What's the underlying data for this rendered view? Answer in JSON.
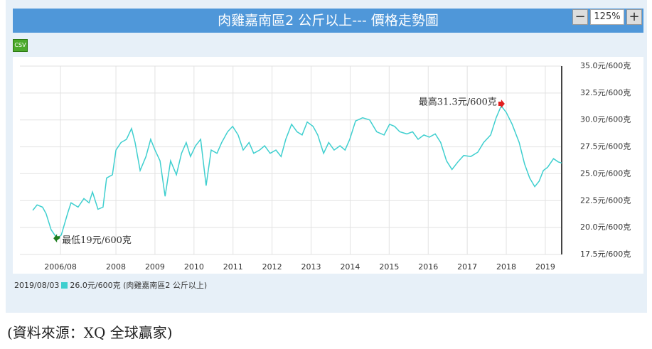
{
  "chart_data": {
    "type": "line",
    "title": "肉雞嘉南區2 公斤以上--- 價格走勢圖",
    "zoom": "125%",
    "csv": "CSV",
    "x": [
      2005.87,
      2005.98,
      2006.12,
      2006.21,
      2006.34,
      2006.49,
      2006.6,
      2006.76,
      2006.85,
      2007.03,
      2007.18,
      2007.31,
      2007.4,
      2007.54,
      2007.67,
      2007.76,
      2007.91,
      2008.0,
      2008.13,
      2008.27,
      2008.4,
      2008.49,
      2008.62,
      2008.77,
      2008.89,
      2009.0,
      2009.13,
      2009.26,
      2009.4,
      2009.55,
      2009.68,
      2009.8,
      2009.91,
      2010.04,
      2010.17,
      2010.31,
      2010.44,
      2010.59,
      2010.71,
      2010.86,
      2010.99,
      2011.13,
      2011.26,
      2011.41,
      2011.53,
      2011.68,
      2011.81,
      2011.95,
      2012.1,
      2012.23,
      2012.35,
      2012.5,
      2012.64,
      2012.77,
      2012.9,
      2013.05,
      2013.17,
      2013.32,
      2013.45,
      2013.59,
      2013.74,
      2013.87,
      2013.99,
      2014.14,
      2014.32,
      2014.5,
      2014.68,
      2014.87,
      2015.01,
      2015.14,
      2015.27,
      2015.45,
      2015.6,
      2015.74,
      2015.89,
      2016.03,
      2016.18,
      2016.32,
      2016.47,
      2016.61,
      2016.76,
      2016.91,
      2017.09,
      2017.27,
      2017.42,
      2017.6,
      2017.74,
      2017.87,
      2018.0,
      2018.15,
      2018.33,
      2018.47,
      2018.6,
      2018.73,
      2018.84,
      2018.95,
      2019.06,
      2019.21,
      2019.33,
      2019.42
    ],
    "series": [
      {
        "name": "26.0元/600克 (肉雞嘉南區2 公斤以上)",
        "color": "#3fcfcf",
        "values": [
          21.6,
          22.1,
          21.9,
          21.3,
          19.8,
          19.0,
          19.3,
          21.3,
          22.3,
          21.9,
          22.7,
          22.3,
          23.3,
          21.7,
          21.9,
          24.6,
          24.9,
          27.2,
          27.9,
          28.2,
          29.2,
          27.9,
          25.3,
          26.6,
          28.2,
          27.2,
          26.2,
          22.9,
          26.2,
          24.9,
          26.9,
          27.9,
          26.6,
          27.6,
          28.2,
          23.9,
          27.2,
          26.9,
          27.9,
          28.9,
          29.4,
          28.6,
          27.2,
          27.9,
          26.9,
          27.2,
          27.6,
          26.9,
          27.2,
          26.6,
          28.2,
          29.6,
          28.9,
          28.6,
          29.8,
          29.4,
          28.6,
          26.9,
          27.9,
          27.2,
          27.6,
          27.2,
          28.2,
          29.9,
          30.2,
          30.0,
          28.9,
          28.6,
          29.6,
          29.4,
          28.9,
          28.7,
          28.9,
          28.2,
          28.6,
          28.4,
          28.7,
          27.9,
          26.2,
          25.4,
          26.1,
          26.7,
          26.6,
          27.0,
          27.9,
          28.6,
          30.2,
          31.3,
          30.7,
          29.6,
          27.9,
          25.9,
          24.6,
          23.8,
          24.3,
          25.3,
          25.6,
          26.4,
          26.1,
          26.0
        ]
      }
    ],
    "legend_date": "2019/08/03",
    "max_label": "最高31.3元/600克",
    "min_label": "最低19元/600克",
    "xlim": [
      2005.54,
      2019.42
    ],
    "xticks": [
      {
        "value": 2006.58,
        "label": "2006/08"
      },
      2008,
      2009,
      2010,
      2011,
      2012,
      2013,
      2014,
      2015,
      2016,
      2017,
      2018,
      2019
    ],
    "ylim": [
      17.5,
      35
    ],
    "yticks": [
      {
        "value": 17.5,
        "label": "17.5元/600克"
      },
      {
        "value": 20,
        "label": "20.0元/600克"
      },
      {
        "value": 22.5,
        "label": "22.5元/600克"
      },
      {
        "value": 25,
        "label": "25.0元/600克"
      },
      {
        "value": 27.5,
        "label": "27.5元/600克"
      },
      {
        "value": 30,
        "label": "30.0元/600克"
      },
      {
        "value": 32.5,
        "label": "32.5元/600克"
      },
      {
        "value": 35,
        "label": "35.0元/600克"
      }
    ],
    "grid": true,
    "source": "(資料來源：XQ 全球贏家)"
  }
}
